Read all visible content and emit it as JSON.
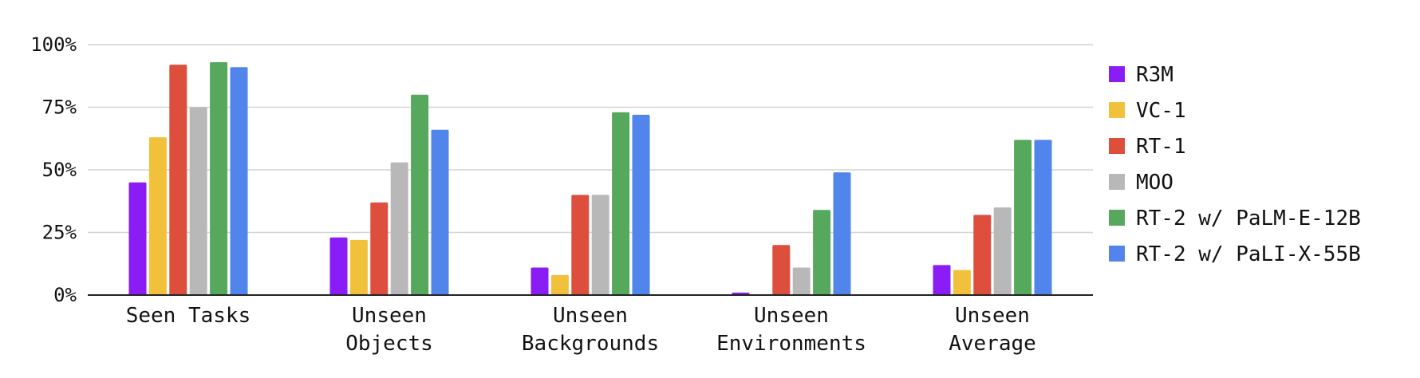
{
  "chart_data": {
    "type": "bar",
    "categories": [
      [
        "Seen Tasks"
      ],
      [
        "Unseen",
        "Objects"
      ],
      [
        "Unseen",
        "Backgrounds"
      ],
      [
        "Unseen",
        "Environments"
      ],
      [
        "Unseen",
        "Average"
      ]
    ],
    "series": [
      {
        "name": "R3M",
        "color": "#8a1cf5",
        "values": [
          45,
          23,
          11,
          1,
          12
        ]
      },
      {
        "name": "VC-1",
        "color": "#f2c13c",
        "values": [
          63,
          22,
          8,
          0,
          10
        ]
      },
      {
        "name": "RT-1",
        "color": "#dd4e3d",
        "values": [
          92,
          37,
          40,
          20,
          32
        ]
      },
      {
        "name": "MOO",
        "color": "#b8b8b8",
        "values": [
          75,
          53,
          40,
          11,
          35
        ]
      },
      {
        "name": "RT-2 w/ PaLM-E-12B",
        "color": "#55a85c",
        "values": [
          93,
          80,
          73,
          34,
          62
        ]
      },
      {
        "name": "RT-2 w/ PaLI-X-55B",
        "color": "#5185ec",
        "values": [
          91,
          66,
          72,
          49,
          62
        ]
      }
    ],
    "yticks": [
      "0%",
      "25%",
      "50%",
      "75%",
      "100%"
    ],
    "ylim": [
      0,
      100
    ],
    "grid": true,
    "legend_position": "right"
  }
}
